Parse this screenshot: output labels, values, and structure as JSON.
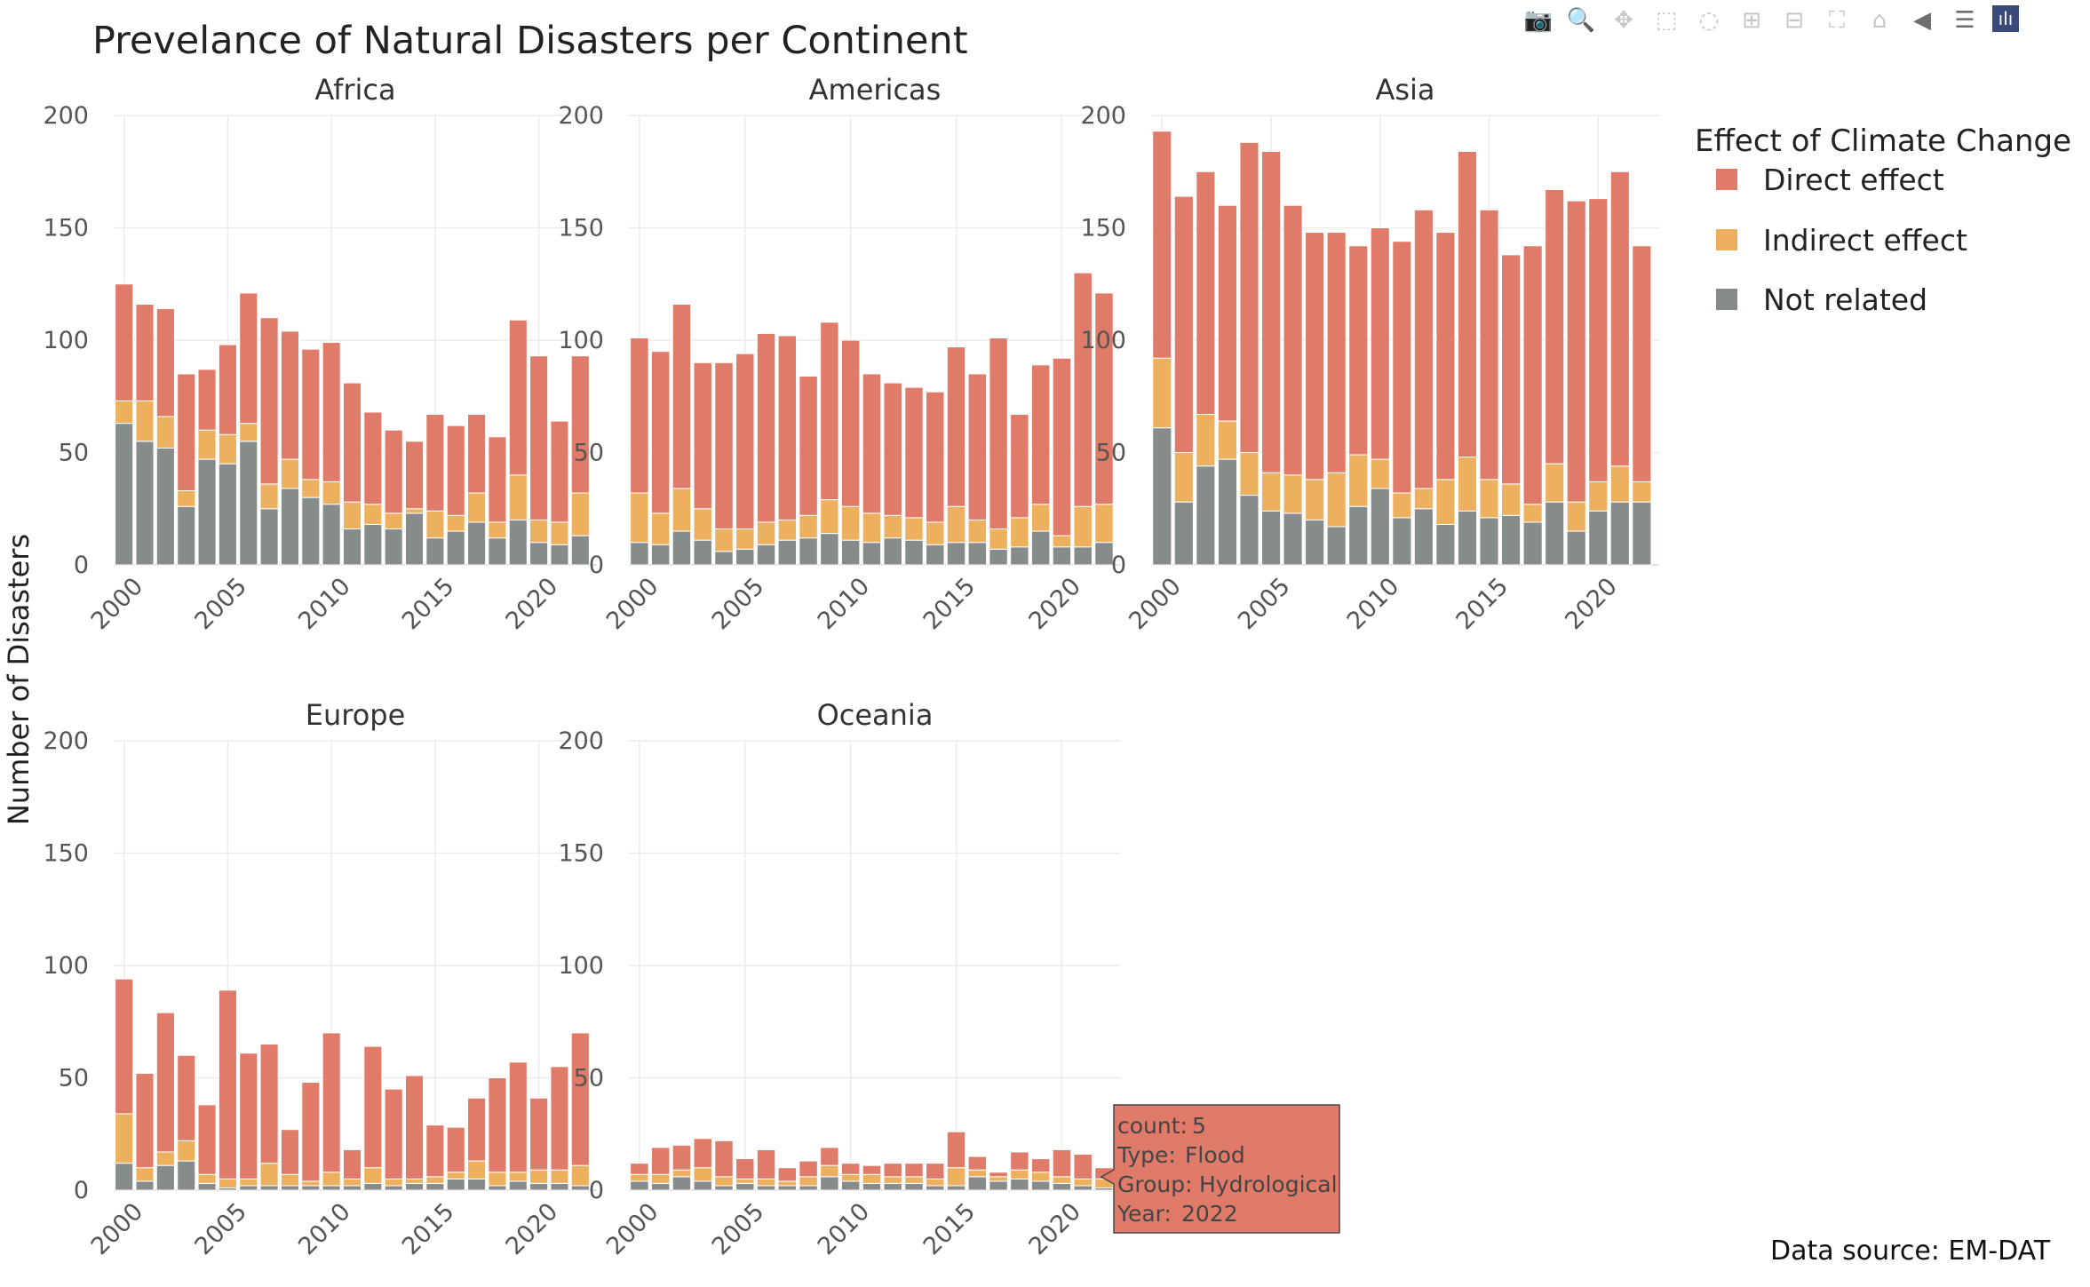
{
  "title": "Prevelance of Natural Disasters per Continent",
  "y_axis_label": "Number of Disasters",
  "source_note": "Data source: EM-DAT",
  "legend": {
    "title": "Effect of Climate Change",
    "items": [
      {
        "label": "Direct effect",
        "color": "#e07b69"
      },
      {
        "label": "Indirect effect",
        "color": "#edb05f"
      },
      {
        "label": "Not related",
        "color": "#868b8c"
      }
    ]
  },
  "tooltip": {
    "count_label": "count:",
    "count_value": "5",
    "type_label": "Type:",
    "type_value": "Flood",
    "group_label": "Group:",
    "group_value": "Hydrological",
    "year_label": "Year:",
    "year_value": "2022",
    "color": "#e07b69"
  },
  "modebar": [
    {
      "name": "camera-icon",
      "glyph": "📷",
      "active": false
    },
    {
      "name": "zoom-icon",
      "glyph": "🔍",
      "active": true
    },
    {
      "name": "pan-icon",
      "glyph": "✥",
      "active": false
    },
    {
      "name": "box-select-icon",
      "glyph": "⬚",
      "active": false
    },
    {
      "name": "lasso-select-icon",
      "glyph": "◌",
      "active": false
    },
    {
      "name": "zoom-in-icon",
      "glyph": "⊞",
      "active": false
    },
    {
      "name": "zoom-out-icon",
      "glyph": "⊟",
      "active": false
    },
    {
      "name": "autoscale-icon",
      "glyph": "⛶",
      "active": false
    },
    {
      "name": "reset-axes-icon",
      "glyph": "⌂",
      "active": false
    },
    {
      "name": "spike-lines-icon",
      "glyph": "◀",
      "active": true
    },
    {
      "name": "compare-hover-icon",
      "glyph": "☰",
      "active": true
    },
    {
      "name": "plotly-logo-icon",
      "glyph": "ılı",
      "active": false
    }
  ],
  "chart_data": {
    "type": "bar",
    "stacked": true,
    "years": [
      2000,
      2001,
      2002,
      2003,
      2004,
      2005,
      2006,
      2007,
      2008,
      2009,
      2010,
      2011,
      2012,
      2013,
      2014,
      2015,
      2016,
      2017,
      2018,
      2019,
      2020,
      2021,
      2022
    ],
    "ylim": [
      0,
      200
    ],
    "y_ticks": [
      0,
      50,
      100,
      150,
      200
    ],
    "x_ticks": [
      2000,
      2005,
      2010,
      2015,
      2020
    ],
    "grid": true,
    "legend_position": "right",
    "panels": [
      {
        "name": "Africa",
        "series": {
          "Not related": [
            63,
            55,
            52,
            26,
            47,
            45,
            55,
            25,
            34,
            30,
            27,
            16,
            18,
            16,
            23,
            12,
            15,
            19,
            12,
            20,
            10,
            9,
            13
          ],
          "Indirect effect": [
            10,
            18,
            14,
            7,
            13,
            13,
            8,
            11,
            13,
            8,
            10,
            12,
            9,
            7,
            2,
            12,
            7,
            13,
            7,
            20,
            10,
            10,
            19
          ],
          "Direct effect": [
            52,
            43,
            48,
            52,
            27,
            40,
            58,
            74,
            57,
            58,
            62,
            53,
            41,
            37,
            30,
            43,
            40,
            35,
            38,
            69,
            73,
            45,
            61
          ]
        }
      },
      {
        "name": "Americas",
        "series": {
          "Not related": [
            10,
            9,
            15,
            11,
            6,
            7,
            9,
            11,
            12,
            14,
            11,
            10,
            12,
            11,
            9,
            10,
            10,
            7,
            8,
            15,
            8,
            8,
            10
          ],
          "Indirect effect": [
            22,
            14,
            19,
            14,
            10,
            9,
            10,
            9,
            10,
            15,
            15,
            13,
            10,
            10,
            10,
            16,
            10,
            9,
            13,
            12,
            5,
            18,
            17
          ],
          "Direct effect": [
            69,
            72,
            82,
            65,
            74,
            78,
            84,
            82,
            62,
            79,
            74,
            62,
            59,
            58,
            58,
            71,
            65,
            85,
            46,
            62,
            79,
            104,
            94
          ]
        }
      },
      {
        "name": "Asia",
        "series": {
          "Not related": [
            61,
            28,
            44,
            47,
            31,
            24,
            23,
            20,
            17,
            26,
            34,
            21,
            25,
            18,
            24,
            21,
            22,
            19,
            28,
            15,
            24,
            28,
            28
          ],
          "Indirect effect": [
            31,
            22,
            23,
            17,
            19,
            17,
            17,
            18,
            24,
            23,
            13,
            11,
            9,
            20,
            24,
            17,
            14,
            8,
            17,
            13,
            13,
            16,
            9
          ],
          "Direct effect": [
            101,
            114,
            108,
            96,
            138,
            143,
            120,
            110,
            107,
            93,
            103,
            112,
            124,
            110,
            136,
            120,
            102,
            115,
            122,
            134,
            126,
            131,
            105
          ]
        }
      },
      {
        "name": "Europe",
        "series": {
          "Not related": [
            12,
            4,
            11,
            13,
            3,
            1,
            2,
            2,
            2,
            2,
            2,
            2,
            3,
            2,
            3,
            3,
            5,
            5,
            2,
            4,
            3,
            3,
            2
          ],
          "Indirect effect": [
            22,
            6,
            6,
            9,
            4,
            4,
            3,
            10,
            5,
            2,
            6,
            3,
            7,
            3,
            2,
            3,
            3,
            8,
            6,
            4,
            6,
            6,
            9
          ],
          "Direct effect": [
            60,
            42,
            62,
            38,
            31,
            84,
            56,
            53,
            20,
            44,
            62,
            13,
            54,
            40,
            46,
            23,
            20,
            28,
            42,
            49,
            32,
            46,
            59
          ]
        }
      },
      {
        "name": "Oceania",
        "series": {
          "Not related": [
            4,
            3,
            6,
            4,
            2,
            3,
            2,
            2,
            2,
            6,
            4,
            3,
            3,
            3,
            2,
            2,
            6,
            4,
            5,
            4,
            3,
            2,
            1
          ],
          "Indirect effect": [
            3,
            4,
            3,
            6,
            4,
            2,
            3,
            2,
            4,
            5,
            3,
            4,
            3,
            3,
            3,
            8,
            3,
            2,
            4,
            4,
            3,
            3,
            4
          ],
          "Direct effect": [
            5,
            12,
            11,
            13,
            16,
            9,
            13,
            6,
            7,
            8,
            5,
            4,
            6,
            6,
            7,
            16,
            6,
            2,
            8,
            6,
            12,
            11,
            5
          ]
        }
      }
    ]
  }
}
